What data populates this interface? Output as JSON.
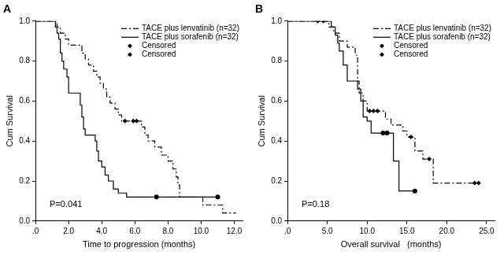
{
  "chart_data": [
    {
      "type": "line",
      "title": "A",
      "x_label": "Time to progression (months)",
      "y_label": "Cum Survival",
      "annotations": [
        "P=0.041"
      ],
      "legend": "top-right",
      "grid": false,
      "xlim": [
        0,
        12.5
      ],
      "xticks": [
        {
          "value": 0,
          "label": ".0"
        },
        {
          "value": 2,
          "label": "2.0"
        },
        {
          "value": 4,
          "label": "4.0"
        },
        {
          "value": 6,
          "label": "6.0"
        },
        {
          "value": 8,
          "label": "8.0"
        },
        {
          "value": 10,
          "label": "10.0"
        },
        {
          "value": 12,
          "label": "12.0"
        }
      ],
      "ylim": [
        0,
        1
      ],
      "yticks": [
        {
          "value": 0,
          "label": "0.0"
        },
        {
          "value": 0.2,
          "label": "0.2"
        },
        {
          "value": 0.4,
          "label": "0.4"
        },
        {
          "value": 0.6,
          "label": "0.6"
        },
        {
          "value": 0.8,
          "label": "0.8"
        },
        {
          "value": 1,
          "label": "1.0"
        }
      ],
      "series": [
        {
          "name": "TACE plus lenvatinib (n=32)",
          "type": "step",
          "line_style": "dashdot",
          "color": "#000000",
          "x": [
            0,
            1.3,
            1.5,
            1.8,
            2.0,
            2.8,
            3.0,
            3.2,
            3.5,
            3.7,
            3.9,
            4.1,
            4.3,
            4.5,
            4.8,
            5.0,
            5.2,
            6.4,
            6.6,
            6.8,
            7.2,
            7.6,
            8.0,
            8.3,
            8.5,
            8.6,
            8.7,
            10.1,
            11.3,
            12.1
          ],
          "values": [
            1,
            0.97,
            0.94,
            0.91,
            0.88,
            0.84,
            0.81,
            0.78,
            0.75,
            0.72,
            0.69,
            0.66,
            0.62,
            0.59,
            0.56,
            0.53,
            0.5,
            0.47,
            0.43,
            0.4,
            0.37,
            0.33,
            0.3,
            0.26,
            0.22,
            0.18,
            0.12,
            0.08,
            0.04,
            0.04
          ]
        },
        {
          "name": "TACE plus sorafenib (n=32)",
          "type": "step",
          "line_style": "solid",
          "color": "#000000",
          "x": [
            0,
            1.2,
            1.3,
            1.4,
            1.5,
            1.6,
            1.7,
            1.9,
            2.0,
            2.7,
            2.8,
            2.9,
            3.0,
            3.6,
            3.7,
            3.8,
            4.0,
            4.2,
            4.4,
            4.7,
            5.0,
            5.5,
            11.0
          ],
          "values": [
            1,
            0.97,
            0.94,
            0.91,
            0.84,
            0.8,
            0.76,
            0.72,
            0.64,
            0.58,
            0.52,
            0.46,
            0.43,
            0.4,
            0.35,
            0.3,
            0.27,
            0.23,
            0.2,
            0.16,
            0.14,
            0.12,
            0.12
          ]
        },
        {
          "name": "Censored",
          "type": "scatter",
          "marker": "circle",
          "color": "#000000",
          "x": [
            7.3,
            11.0
          ],
          "values": [
            0.12,
            0.12
          ]
        },
        {
          "name": "Censored",
          "type": "scatter",
          "marker": "diamond",
          "color": "#000000",
          "x": [
            5.4,
            5.9,
            6.1
          ],
          "values": [
            0.5,
            0.5,
            0.5
          ]
        }
      ]
    },
    {
      "type": "line",
      "title": "B",
      "x_label": "Overall survival   (months)",
      "y_label": "Cum Survival",
      "annotations": [
        "P=0.18"
      ],
      "legend": "top-right",
      "grid": false,
      "xlim": [
        0,
        26
      ],
      "xticks": [
        {
          "value": 0,
          "label": ".0"
        },
        {
          "value": 5,
          "label": "5.0"
        },
        {
          "value": 10,
          "label": "10.0"
        },
        {
          "value": 15,
          "label": "15.0"
        },
        {
          "value": 20,
          "label": "20.0"
        },
        {
          "value": 25,
          "label": "25.0"
        }
      ],
      "ylim": [
        0,
        1
      ],
      "yticks": [
        {
          "value": 0,
          "label": "0.0"
        },
        {
          "value": 0.2,
          "label": "0.2"
        },
        {
          "value": 0.4,
          "label": "0.4"
        },
        {
          "value": 0.6,
          "label": "0.6"
        },
        {
          "value": 0.8,
          "label": "0.8"
        },
        {
          "value": 1,
          "label": "1.0"
        }
      ],
      "series": [
        {
          "name": "TACE plus lenvatinib (n=32)",
          "type": "step",
          "line_style": "dashdot",
          "color": "#000000",
          "x": [
            0,
            5.2,
            5.8,
            6.5,
            7.5,
            8.5,
            8.8,
            9.0,
            9.5,
            10.0,
            12.3,
            13.0,
            14.5,
            15.0,
            16.0,
            17.0,
            18.3,
            24.0
          ],
          "values": [
            1,
            0.97,
            0.94,
            0.9,
            0.87,
            0.83,
            0.7,
            0.64,
            0.6,
            0.55,
            0.51,
            0.48,
            0.45,
            0.42,
            0.35,
            0.31,
            0.19,
            0.19
          ]
        },
        {
          "name": "TACE plus sorafenib (n=32)",
          "type": "step",
          "line_style": "solid",
          "color": "#000000",
          "x": [
            0,
            5.5,
            6.0,
            6.3,
            6.5,
            7.0,
            7.5,
            8.8,
            9.2,
            9.5,
            10.0,
            10.5,
            13.3,
            14.0,
            16.0
          ],
          "values": [
            1,
            0.97,
            0.93,
            0.89,
            0.85,
            0.78,
            0.7,
            0.66,
            0.6,
            0.52,
            0.5,
            0.44,
            0.3,
            0.15,
            0.15
          ]
        },
        {
          "name": "Censored",
          "type": "scatter",
          "marker": "circle",
          "color": "#000000",
          "x": [
            12.0,
            12.5,
            16.0
          ],
          "values": [
            0.44,
            0.44,
            0.15
          ]
        },
        {
          "name": "Censored",
          "type": "scatter",
          "marker": "diamond",
          "color": "#000000",
          "x": [
            3.8,
            4.5,
            10.3,
            10.8,
            11.3,
            15.5,
            17.8,
            23.5,
            24.0
          ],
          "values": [
            1,
            1,
            0.55,
            0.55,
            0.55,
            0.42,
            0.31,
            0.19,
            0.19
          ]
        }
      ]
    }
  ]
}
